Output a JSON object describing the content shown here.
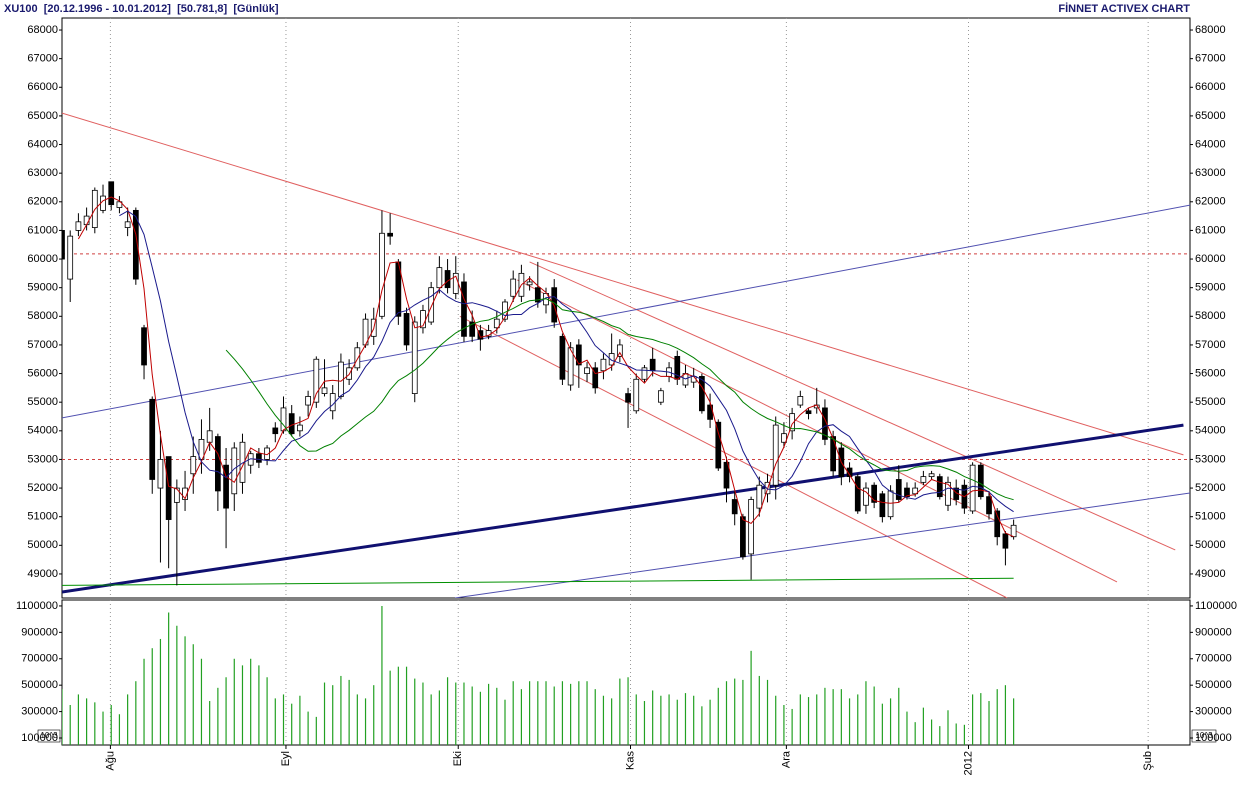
{
  "chart_data": {
    "type": "candlestick",
    "title": "XU100  [20.12.1996 - 10.01.2012]  [50.781,8]  [Günlük]",
    "brand": "FİNNET ACTIVEX CHART",
    "xlim": [
      0,
      137.5
    ],
    "xticks": [
      {
        "value": 5.9,
        "label": "Ağu"
      },
      {
        "value": 27.3,
        "label": "Eyl"
      },
      {
        "value": 48.3,
        "label": "Eki"
      },
      {
        "value": 69.3,
        "label": "Kas"
      },
      {
        "value": 88.3,
        "label": "Ara"
      },
      {
        "value": 110.5,
        "label": "2012"
      },
      {
        "value": 132.4,
        "label": "Şub"
      }
    ],
    "ylim": [
      48160,
      68420
    ],
    "yticks": [
      49000,
      50000,
      51000,
      52000,
      53000,
      54000,
      55000,
      56000,
      57000,
      58000,
      59000,
      60000,
      61000,
      62000,
      63000,
      64000,
      65000,
      66000,
      67000,
      68000
    ],
    "open": [
      61000,
      59300,
      61000,
      61200,
      61100,
      61700,
      62700,
      61800,
      61100,
      61700,
      57600,
      55100,
      52000,
      53100,
      51500,
      51600,
      52500,
      53000,
      53600,
      53800,
      52800,
      51800,
      52200,
      52800,
      53200,
      53000,
      54100,
      54000,
      54600,
      54000,
      54900,
      55000,
      55300,
      54700,
      55200,
      55800,
      56200,
      57000,
      57300,
      58000,
      60900,
      59900,
      58100,
      55300,
      57600,
      57800,
      59000,
      59600,
      58800,
      59200,
      57800,
      57500,
      57300,
      57600,
      57900,
      58700,
      58700,
      59100,
      59000,
      58400,
      59000,
      57300,
      55600,
      57000,
      56000,
      56200,
      56100,
      56300,
      56600,
      55300,
      54700,
      55800,
      56500,
      55000,
      55900,
      56600,
      55600,
      55700,
      55900,
      54900,
      54300,
      52900,
      51600,
      51000,
      49700,
      51300,
      51800,
      52100,
      53600,
      54000,
      54900,
      54700,
      54800,
      54800,
      53800,
      53400,
      52700,
      52400,
      51400,
      52100,
      51800,
      51000,
      52300,
      52000,
      51800,
      52200,
      52400,
      52400,
      51400,
      52000,
      52100,
      51200,
      52800,
      51700,
      51200,
      50400,
      50300
    ],
    "high": [
      61100,
      61000,
      61600,
      61800,
      62500,
      62600,
      62700,
      62200,
      61800,
      61800,
      57700,
      55200,
      54000,
      53100,
      52300,
      52600,
      53800,
      54400,
      54800,
      53900,
      53400,
      53600,
      53900,
      53300,
      53400,
      53500,
      54300,
      55200,
      54900,
      54500,
      55400,
      56600,
      56500,
      55600,
      56700,
      56500,
      57100,
      58100,
      58300,
      61700,
      61600,
      60000,
      58300,
      58000,
      58400,
      59200,
      60100,
      60000,
      60100,
      59500,
      58200,
      57700,
      57700,
      58200,
      58600,
      59600,
      59800,
      59400,
      59900,
      59000,
      59300,
      57400,
      57100,
      57200,
      56400,
      56400,
      56700,
      57400,
      57200,
      55500,
      56000,
      56300,
      56900,
      55500,
      56400,
      56800,
      56300,
      56200,
      56000,
      55300,
      54400,
      53100,
      51900,
      51100,
      51700,
      52400,
      52500,
      54500,
      54300,
      54800,
      55400,
      54800,
      55500,
      55100,
      54000,
      53600,
      52900,
      52500,
      52200,
      52200,
      51900,
      52100,
      52800,
      52200,
      52200,
      52600,
      52600,
      52500,
      52400,
      52300,
      52300,
      52900,
      52900,
      51900,
      51300,
      50500,
      50900
    ],
    "low": [
      59700,
      58500,
      60800,
      61000,
      60900,
      61600,
      61700,
      61600,
      60800,
      59100,
      55800,
      51800,
      49400,
      49200,
      48600,
      51200,
      51800,
      52500,
      53300,
      51200,
      49900,
      51200,
      51800,
      52500,
      52700,
      52800,
      53600,
      53900,
      53800,
      53800,
      54500,
      54800,
      55200,
      54400,
      55100,
      55600,
      56100,
      56900,
      57000,
      57900,
      60500,
      57700,
      56800,
      55000,
      57400,
      57700,
      58800,
      58800,
      58600,
      57100,
      57100,
      56800,
      57200,
      57400,
      57800,
      58500,
      58500,
      58900,
      58300,
      58100,
      57600,
      55600,
      55400,
      55500,
      55700,
      55300,
      55800,
      56100,
      56400,
      54100,
      54600,
      55700,
      55900,
      54900,
      55700,
      55600,
      55500,
      55500,
      54600,
      54100,
      52600,
      51500,
      50700,
      49500,
      48800,
      51000,
      51500,
      51600,
      53400,
      53700,
      54800,
      54400,
      54600,
      53500,
      52400,
      52100,
      52200,
      51100,
      51100,
      51300,
      50800,
      50900,
      51500,
      51600,
      51700,
      52100,
      52300,
      51600,
      51200,
      51400,
      51100,
      51100,
      51600,
      50900,
      50000,
      49300,
      50200
    ],
    "close": [
      60000,
      60800,
      61300,
      61500,
      62400,
      62200,
      61900,
      62000,
      61300,
      59300,
      56300,
      52300,
      53000,
      50900,
      52000,
      52000,
      53100,
      53700,
      54000,
      51900,
      51300,
      53400,
      53600,
      53200,
      52900,
      53400,
      53900,
      54800,
      53900,
      54200,
      55200,
      56500,
      55500,
      55300,
      56400,
      56200,
      56900,
      57900,
      57900,
      60900,
      60800,
      58000,
      57000,
      57800,
      58200,
      59000,
      59700,
      59000,
      59500,
      57300,
      57300,
      57200,
      57500,
      57900,
      58500,
      59300,
      59500,
      59200,
      58500,
      58800,
      57800,
      55800,
      56900,
      56300,
      56200,
      55500,
      56500,
      56700,
      57000,
      55000,
      55800,
      56200,
      56100,
      55400,
      56200,
      55800,
      56000,
      55900,
      54700,
      54400,
      52700,
      52000,
      51100,
      49600,
      51600,
      52100,
      52200,
      54200,
      53900,
      54600,
      55200,
      54600,
      54900,
      53700,
      52600,
      52400,
      52400,
      51200,
      52000,
      51500,
      51000,
      51900,
      51600,
      51700,
      52000,
      52400,
      52500,
      51700,
      52200,
      51600,
      51300,
      52800,
      51700,
      51100,
      50300,
      49900,
      50700
    ],
    "up_color": "#ffffff",
    "down_color": "#000000",
    "moving_averages": [
      {
        "period": 3,
        "color": "#c00000"
      },
      {
        "period": 8,
        "color": "#1a1a8c"
      },
      {
        "period": 21,
        "color": "#008000"
      }
    ],
    "hlines": [
      {
        "value": 60180,
        "color": "#d04040"
      },
      {
        "value": 53000,
        "color": "#d04040"
      }
    ],
    "trendlines": [
      {
        "x": [
          0,
          136.7
        ],
        "y": [
          65100,
          53160
        ],
        "color": "#e06060",
        "width": 1
      },
      {
        "x": [
          57,
          135.7
        ],
        "y": [
          59900,
          49840
        ],
        "color": "#e06060",
        "width": 1
      },
      {
        "x": [
          55.5,
          128.6
        ],
        "y": [
          59270,
          48720
        ],
        "color": "#e06060",
        "width": 1
      },
      {
        "x": [
          48.5,
          115.2
        ],
        "y": [
          58000,
          48160
        ],
        "color": "#e06060",
        "width": 1
      },
      {
        "x": [
          0,
          136.7
        ],
        "y": [
          48370,
          54200
        ],
        "color": "#101070",
        "width": 3
      },
      {
        "x": [
          0,
          137.6
        ],
        "y": [
          54450,
          61890
        ],
        "color": "#5050b0",
        "width": 1
      },
      {
        "x": [
          47.9,
          137.6
        ],
        "y": [
          48160,
          51830
        ],
        "color": "#5050b0",
        "width": 1
      },
      {
        "x": [
          0,
          116
        ],
        "y": [
          48600,
          48850
        ],
        "color": "#009000",
        "width": 1
      }
    ],
    "volume": {
      "unit_label": "10^3",
      "color": "#22a022",
      "ylim": [
        47000,
        1145000
      ],
      "yticks": [
        100000,
        300000,
        500000,
        700000,
        900000,
        1100000
      ],
      "values": [
        470000,
        350000,
        430000,
        400000,
        370000,
        300000,
        350000,
        280000,
        430000,
        530000,
        700000,
        780000,
        850000,
        1050000,
        950000,
        870000,
        810000,
        700000,
        380000,
        480000,
        560000,
        700000,
        650000,
        700000,
        650000,
        560000,
        400000,
        430000,
        360000,
        420000,
        300000,
        260000,
        520000,
        500000,
        570000,
        540000,
        430000,
        400000,
        500000,
        1100000,
        610000,
        640000,
        640000,
        550000,
        520000,
        430000,
        460000,
        560000,
        520000,
        520000,
        490000,
        450000,
        510000,
        480000,
        390000,
        530000,
        470000,
        530000,
        530000,
        530000,
        490000,
        530000,
        510000,
        530000,
        530000,
        470000,
        420000,
        400000,
        550000,
        560000,
        430000,
        380000,
        460000,
        420000,
        430000,
        390000,
        440000,
        420000,
        340000,
        390000,
        480000,
        530000,
        550000,
        540000,
        760000,
        570000,
        540000,
        420000,
        350000,
        320000,
        430000,
        410000,
        430000,
        480000,
        470000,
        470000,
        400000,
        430000,
        530000,
        490000,
        360000,
        400000,
        480000,
        300000,
        220000,
        330000,
        240000,
        190000,
        310000,
        210000,
        200000,
        430000,
        440000,
        380000,
        470000,
        500000,
        400000
      ]
    }
  }
}
